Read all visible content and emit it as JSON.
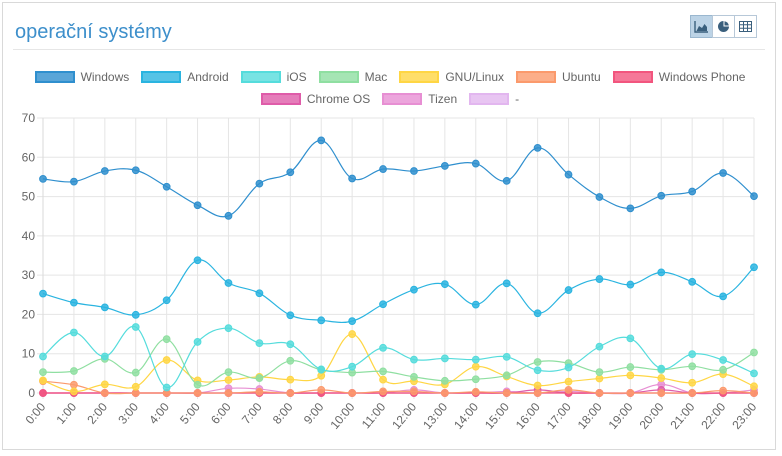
{
  "title": "operační systémy",
  "view_buttons": [
    {
      "name": "line-chart-view-button",
      "icon": "area-chart-icon",
      "active": true
    },
    {
      "name": "pie-chart-view-button",
      "icon": "pie-chart-icon",
      "active": false
    },
    {
      "name": "table-view-button",
      "icon": "table-icon",
      "active": false
    }
  ],
  "chart_data": {
    "type": "line",
    "title": "",
    "xlabel": "",
    "ylabel": "",
    "ylim": [
      0,
      70
    ],
    "yticks": [
      0,
      10,
      20,
      30,
      40,
      50,
      60,
      70
    ],
    "grid": true,
    "legend_position": "top",
    "categories": [
      "0:00",
      "1:00",
      "2:00",
      "3:00",
      "4:00",
      "5:00",
      "6:00",
      "7:00",
      "8:00",
      "9:00",
      "10:00",
      "11:00",
      "12:00",
      "13:00",
      "14:00",
      "15:00",
      "16:00",
      "17:00",
      "18:00",
      "19:00",
      "20:00",
      "21:00",
      "22:00",
      "23:00"
    ],
    "series": [
      {
        "name": "Windows",
        "color": "#2f8fce",
        "values": [
          54.5,
          53.8,
          56.5,
          56.7,
          52.5,
          47.8,
          45.1,
          53.3,
          56.2,
          64.3,
          54.6,
          57.0,
          56.5,
          57.8,
          58.4,
          54.0,
          62.4,
          55.6,
          49.9,
          47.0,
          50.2,
          51.3,
          56.0,
          50.1
        ]
      },
      {
        "name": "Android",
        "color": "#2ab4e0",
        "values": [
          25.3,
          23.0,
          21.8,
          19.9,
          23.6,
          33.8,
          28.0,
          25.4,
          19.8,
          18.5,
          18.3,
          22.6,
          26.3,
          27.7,
          22.5,
          27.9,
          20.3,
          26.2,
          29.0,
          27.6,
          30.7,
          28.3,
          24.6,
          32.0
        ]
      },
      {
        "name": "iOS",
        "color": "#55dcdc",
        "values": [
          9.3,
          15.4,
          9.3,
          16.8,
          1.4,
          13.0,
          16.5,
          12.7,
          12.4,
          6.0,
          6.7,
          11.5,
          8.5,
          8.8,
          8.5,
          9.2,
          5.8,
          6.5,
          11.8,
          13.9,
          6.2,
          9.9,
          8.4,
          5.0
        ]
      },
      {
        "name": "Mac",
        "color": "#8fdfa1",
        "values": [
          5.3,
          5.6,
          8.7,
          5.2,
          13.7,
          2.1,
          5.3,
          3.8,
          8.2,
          5.9,
          5.2,
          5.5,
          4.1,
          3.1,
          3.5,
          4.5,
          7.9,
          7.6,
          5.3,
          6.6,
          5.9,
          6.8,
          5.9,
          10.3
        ]
      },
      {
        "name": "GNU/Linux",
        "color": "#ffd644",
        "values": [
          3.2,
          0.4,
          2.2,
          1.6,
          8.4,
          3.2,
          3.3,
          4.1,
          3.4,
          4.4,
          15.0,
          3.4,
          3.0,
          2.2,
          6.7,
          4.2,
          1.9,
          2.9,
          3.7,
          4.5,
          3.8,
          2.6,
          4.8,
          1.7
        ]
      },
      {
        "name": "Ubuntu",
        "color": "#fb9a6c",
        "values": [
          3.0,
          2.1,
          0.0,
          0.0,
          0.0,
          0.0,
          0.0,
          0.3,
          0.0,
          0.8,
          0.0,
          0.4,
          0.4,
          0.0,
          0.3,
          0.0,
          0.0,
          0.8,
          0.0,
          0.0,
          0.0,
          0.0,
          0.6,
          0.0
        ]
      },
      {
        "name": "Windows Phone",
        "color": "#f2557e",
        "values": [
          0.0,
          0.0,
          0.0,
          0.0,
          0.0,
          0.0,
          0.0,
          0.0,
          0.0,
          0.0,
          0.0,
          0.0,
          0.0,
          0.0,
          0.0,
          0.0,
          0.0,
          0.0,
          0.0,
          0.0,
          0.0,
          0.0,
          0.0,
          0.0
        ]
      },
      {
        "name": "Chrome OS",
        "color": "#df5ca9",
        "values": [
          0.0,
          0.0,
          0.0,
          0.0,
          0.0,
          0.0,
          0.0,
          0.0,
          0.0,
          0.0,
          0.0,
          0.0,
          0.0,
          0.0,
          0.0,
          0.0,
          0.8,
          0.0,
          0.0,
          0.0,
          0.8,
          0.0,
          0.0,
          0.0
        ]
      },
      {
        "name": "Tizen",
        "color": "#e78fd3",
        "values": [
          0.0,
          0.0,
          0.0,
          0.0,
          0.0,
          0.0,
          1.2,
          1.0,
          0.0,
          0.0,
          0.0,
          0.0,
          0.8,
          0.0,
          0.0,
          0.4,
          0.0,
          0.4,
          0.0,
          0.0,
          2.2,
          0.0,
          0.0,
          0.8
        ]
      },
      {
        "name": "-",
        "color": "#e2b6ef",
        "values": [
          0.0,
          0.0,
          0.0,
          0.0,
          0.0,
          0.0,
          0.0,
          0.0,
          0.0,
          0.0,
          0.0,
          0.0,
          0.0,
          0.0,
          0.0,
          0.0,
          0.0,
          0.0,
          0.0,
          0.0,
          0.0,
          0.0,
          0.0,
          0.0
        ]
      }
    ]
  }
}
